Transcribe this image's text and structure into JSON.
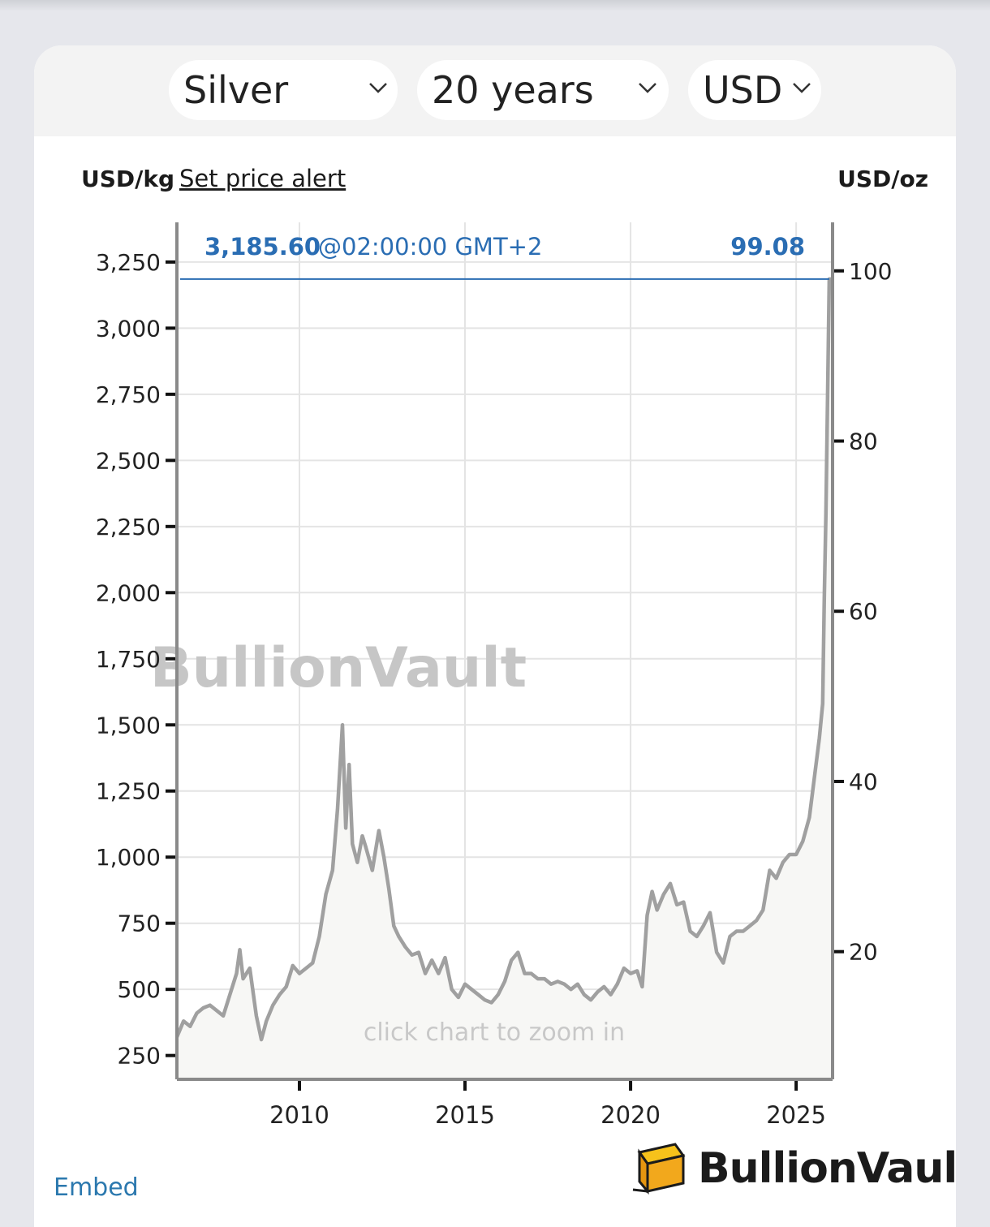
{
  "selectors": {
    "metal": "Silver",
    "period": "20 years",
    "currency": "USD"
  },
  "header": {
    "left_unit": "USD/kg",
    "alert_link": "Set price alert",
    "right_unit": "USD/oz"
  },
  "current": {
    "price_kg": "3,185.60",
    "time": "@02:00:00 GMT+2",
    "price_oz": "99.08"
  },
  "watermark": "BullionVault",
  "hint": "click chart to zoom in",
  "footer": {
    "embed": "Embed",
    "brand": "BullionVault"
  },
  "colors": {
    "line": "#a0a0a0",
    "area": "#f7f7f5",
    "current_line": "#2a6db3",
    "axis": "#8a8a8a"
  },
  "chart_data": {
    "type": "area",
    "xlabel": "",
    "ylabel": "USD/kg",
    "y2label": "USD/oz",
    "xlim": [
      2006.3,
      2026.1
    ],
    "ylim": [
      160,
      3400
    ],
    "y2lim": [
      5.0,
      105.7
    ],
    "x_ticks": [
      2010,
      2015,
      2020,
      2025
    ],
    "y_ticks": [
      250,
      500,
      750,
      1000,
      1250,
      1500,
      1750,
      2000,
      2250,
      2500,
      2750,
      3000,
      3250
    ],
    "y_tick_labels": [
      "250",
      "500",
      "750",
      "1,000",
      "1,250",
      "1,500",
      "1,750",
      "2,000",
      "2,250",
      "2,500",
      "2,750",
      "3,000",
      "3,250"
    ],
    "y2_ticks": [
      20,
      40,
      60,
      80,
      100
    ],
    "y2_tick_labels": [
      "20",
      "40",
      "60",
      "80",
      "100"
    ],
    "current_value": 3185.6,
    "grid": true,
    "series": [
      {
        "x": [
          2006.3,
          2006.5,
          2006.7,
          2006.9,
          2007.1,
          2007.3,
          2007.5,
          2007.7,
          2007.9,
          2008.1,
          2008.2,
          2008.3,
          2008.5,
          2008.7,
          2008.85,
          2009.0,
          2009.2,
          2009.4,
          2009.6,
          2009.8,
          2010.0,
          2010.2,
          2010.4,
          2010.6,
          2010.8,
          2011.0,
          2011.15,
          2011.3,
          2011.4,
          2011.5,
          2011.6,
          2011.75,
          2011.9,
          2012.0,
          2012.2,
          2012.4,
          2012.55,
          2012.7,
          2012.85,
          2013.0,
          2013.2,
          2013.4,
          2013.6,
          2013.8,
          2014.0,
          2014.2,
          2014.4,
          2014.6,
          2014.8,
          2015.0,
          2015.2,
          2015.4,
          2015.6,
          2015.8,
          2016.0,
          2016.2,
          2016.4,
          2016.6,
          2016.8,
          2017.0,
          2017.2,
          2017.4,
          2017.6,
          2017.8,
          2018.0,
          2018.2,
          2018.4,
          2018.6,
          2018.8,
          2019.0,
          2019.2,
          2019.4,
          2019.6,
          2019.8,
          2020.0,
          2020.2,
          2020.35,
          2020.5,
          2020.65,
          2020.8,
          2021.0,
          2021.2,
          2021.4,
          2021.6,
          2021.8,
          2022.0,
          2022.2,
          2022.4,
          2022.6,
          2022.8,
          2023.0,
          2023.2,
          2023.4,
          2023.6,
          2023.8,
          2024.0,
          2024.2,
          2024.4,
          2024.6,
          2024.8,
          2025.0,
          2025.2,
          2025.4,
          2025.5,
          2025.6,
          2025.7,
          2025.8,
          2025.85,
          2025.9,
          2025.95,
          2026.0,
          2026.1
        ],
        "values": [
          320,
          380,
          360,
          410,
          430,
          440,
          420,
          400,
          480,
          560,
          650,
          540,
          580,
          400,
          310,
          380,
          440,
          480,
          510,
          590,
          560,
          580,
          600,
          700,
          860,
          950,
          1180,
          1500,
          1110,
          1350,
          1050,
          980,
          1080,
          1040,
          950,
          1100,
          1000,
          880,
          740,
          700,
          660,
          630,
          640,
          560,
          610,
          560,
          620,
          500,
          470,
          520,
          500,
          480,
          460,
          450,
          480,
          530,
          610,
          640,
          560,
          560,
          540,
          540,
          520,
          530,
          520,
          500,
          520,
          480,
          460,
          490,
          510,
          480,
          520,
          580,
          560,
          570,
          510,
          780,
          870,
          800,
          860,
          900,
          820,
          830,
          720,
          700,
          740,
          790,
          640,
          600,
          700,
          720,
          720,
          740,
          760,
          800,
          950,
          920,
          980,
          1010,
          1010,
          1060,
          1150,
          1250,
          1350,
          1450,
          1580,
          1980,
          2300,
          2750,
          3185.6,
          3185.6
        ]
      }
    ]
  }
}
